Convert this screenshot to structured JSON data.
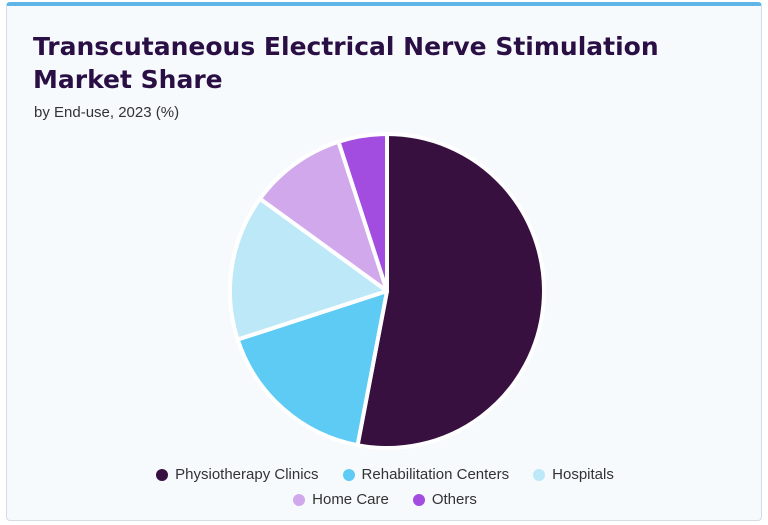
{
  "chart_data": {
    "type": "pie",
    "title": "Transcutaneous Electrical Nerve Stimulation Market Share",
    "subtitle": "by End-use, 2023 (%)",
    "categories": [
      "Physiotherapy Clinics",
      "Rehabilitation Centers",
      "Hospitals",
      "Home Care",
      "Others"
    ],
    "values": [
      53,
      17,
      15,
      10,
      5
    ],
    "colors": [
      "#37103f",
      "#5ecbf5",
      "#bde8f8",
      "#d2a8ec",
      "#a24ce0"
    ],
    "legend_position": "bottom"
  }
}
